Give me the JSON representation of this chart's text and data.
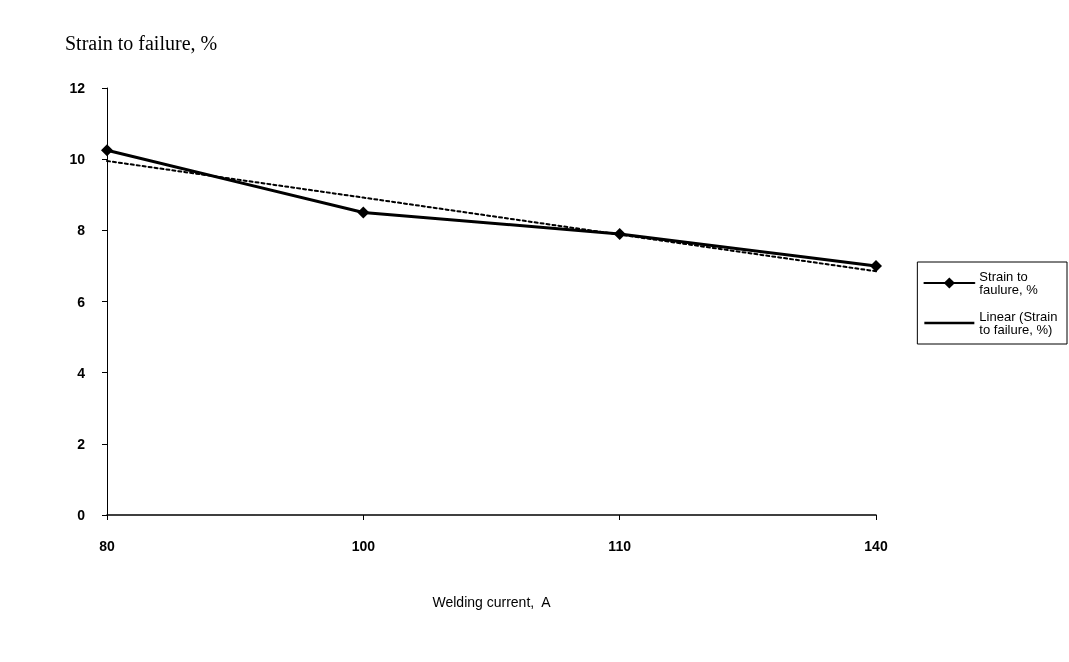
{
  "chart_data": {
    "type": "line",
    "title": "Strain to failure, %",
    "xlabel": "Welding current,  A",
    "categories": [
      "80",
      "100",
      "110",
      "140"
    ],
    "series": [
      {
        "name": "Strain to faulure, %",
        "color": "#000000",
        "values": [
          10.25,
          8.5,
          7.9,
          7.0
        ],
        "marker": "diamond",
        "line_style": "solid"
      },
      {
        "name": "Linear (Strain to failure, %)",
        "color": "#000000",
        "values": [
          9.95,
          8.92,
          7.88,
          6.85
        ],
        "marker": "none",
        "line_style": "dotted"
      }
    ],
    "ylim": [
      0,
      12
    ],
    "yticks": [
      0,
      2,
      4,
      6,
      8,
      10,
      12
    ],
    "grid": false,
    "legend": "right"
  }
}
